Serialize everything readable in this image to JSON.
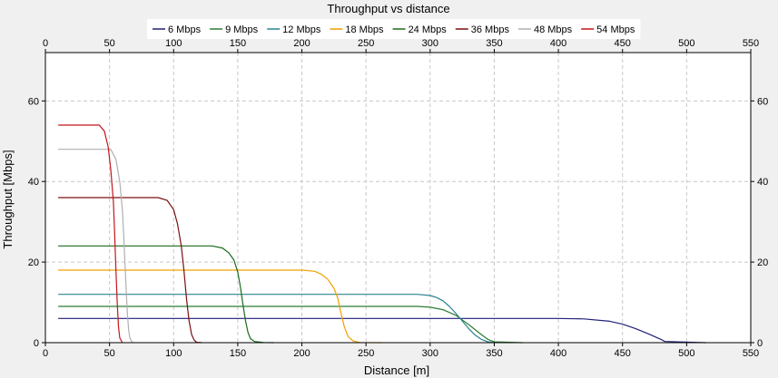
{
  "chart_data": {
    "type": "line",
    "title": "Throughput vs distance",
    "xlabel": "Distance [m]",
    "ylabel": "Throughput [Mbps]",
    "xlim": [
      0,
      550
    ],
    "ylim": [
      0,
      72
    ],
    "x_ticks": [
      0,
      50,
      100,
      150,
      200,
      250,
      300,
      350,
      400,
      450,
      500,
      550
    ],
    "y_ticks": [
      0,
      20,
      40,
      60
    ],
    "grid": true,
    "legend_position": "top",
    "series": [
      {
        "name": "6 Mbps",
        "color": "#1f1f7a",
        "x": [
          10,
          400,
          420,
          440,
          450,
          460,
          470,
          480,
          483,
          515
        ],
        "y": [
          6,
          6,
          5.9,
          5.3,
          4.6,
          3.5,
          2.2,
          0.8,
          0.3,
          0
        ]
      },
      {
        "name": "9 Mbps",
        "color": "#2e7d32",
        "x": [
          10,
          290,
          300,
          310,
          320,
          330,
          340,
          345,
          350,
          372
        ],
        "y": [
          9,
          9,
          8.8,
          8.2,
          6.8,
          4.5,
          2.0,
          0.8,
          0.2,
          0
        ]
      },
      {
        "name": "12 Mbps",
        "color": "#2a8290",
        "x": [
          10,
          290,
          300,
          305,
          310,
          315,
          320,
          325,
          330,
          335,
          340,
          345,
          350
        ],
        "y": [
          12,
          12,
          11.7,
          11.2,
          10.4,
          9.0,
          7.3,
          5.4,
          3.5,
          1.9,
          0.8,
          0.2,
          0
        ]
      },
      {
        "name": "18 Mbps",
        "color": "#f0a000",
        "x": [
          10,
          200,
          210,
          215,
          220,
          225,
          228,
          230,
          233,
          236,
          240,
          245,
          262
        ],
        "y": [
          18,
          18,
          17.7,
          17.0,
          15.8,
          13.5,
          11.0,
          8.0,
          4.0,
          1.5,
          0.4,
          0.05,
          0
        ]
      },
      {
        "name": "24 Mbps",
        "color": "#1b6b1b",
        "x": [
          10,
          130,
          138,
          143,
          147,
          150,
          152,
          154,
          156,
          158,
          160,
          163,
          170,
          178
        ],
        "y": [
          24,
          24,
          23.5,
          22.3,
          20.5,
          17.5,
          14.0,
          9.5,
          5.5,
          2.5,
          1.0,
          0.3,
          0.05,
          0
        ]
      },
      {
        "name": "36 Mbps",
        "color": "#7a1010",
        "x": [
          10,
          88,
          95,
          100,
          103,
          106,
          108,
          110,
          112,
          114,
          116,
          118,
          122
        ],
        "y": [
          36,
          36,
          35.3,
          33.0,
          29.5,
          24.0,
          18.0,
          11.0,
          5.5,
          2.0,
          0.6,
          0.1,
          0
        ]
      },
      {
        "name": "48 Mbps",
        "color": "#b0b0b0",
        "x": [
          10,
          51,
          55,
          58,
          60,
          61,
          62,
          63,
          64,
          65,
          66,
          68
        ],
        "y": [
          48,
          48,
          45.5,
          40.0,
          33.0,
          27.0,
          20.0,
          13.0,
          7.0,
          3.0,
          1.0,
          0
        ]
      },
      {
        "name": "54 Mbps",
        "color": "#c4161c",
        "x": [
          10,
          42,
          46,
          49,
          51,
          53,
          54,
          55,
          56,
          57,
          58,
          60
        ],
        "y": [
          54,
          54,
          52.5,
          48.5,
          43.0,
          35.0,
          27.0,
          18.0,
          10.0,
          4.0,
          1.2,
          0
        ]
      }
    ]
  }
}
